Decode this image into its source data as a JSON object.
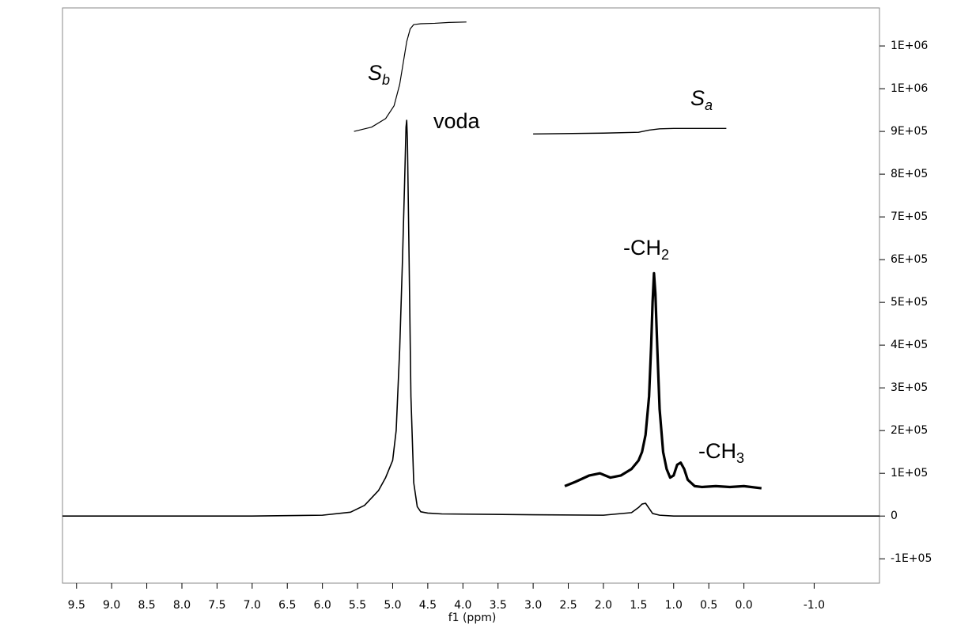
{
  "chart_data": {
    "type": "line",
    "x_label": "f1 (ppm)",
    "xlim": [
      9.7,
      -1.93
    ],
    "xticks": [
      9.5,
      {
        "value": 9,
        "label": "9.0"
      },
      8.5,
      {
        "value": 8,
        "label": "8.0"
      },
      7.5,
      {
        "value": 7,
        "label": "7.0"
      },
      6.5,
      {
        "value": 6,
        "label": "6.0"
      },
      5.5,
      {
        "value": 5,
        "label": "5.0"
      },
      4.5,
      {
        "value": 4,
        "label": "4.0"
      },
      3.5,
      {
        "value": 3,
        "label": "3.0"
      },
      2.5,
      {
        "value": 2,
        "label": "2.0"
      },
      1.5,
      {
        "value": 1,
        "label": "1.0"
      },
      0.5,
      {
        "value": 0,
        "label": "0.0"
      },
      {
        "value": -1,
        "label": "-1.0"
      }
    ],
    "ylim": [
      -157000,
      1189000
    ],
    "yticks": [
      {
        "value": 1100000,
        "label": "1E+06"
      },
      {
        "value": 1000000,
        "label": "1E+06"
      },
      {
        "value": 900000,
        "label": "9E+05"
      },
      {
        "value": 800000,
        "label": "8E+05"
      },
      {
        "value": 700000,
        "label": "7E+05"
      },
      {
        "value": 600000,
        "label": "6E+05"
      },
      {
        "value": 500000,
        "label": "5E+05"
      },
      {
        "value": 400000,
        "label": "4E+05"
      },
      {
        "value": 300000,
        "label": "3E+05"
      },
      {
        "value": 200000,
        "label": "2E+05"
      },
      {
        "value": 100000,
        "label": "1E+05"
      },
      0,
      {
        "value": -100000,
        "label": "-1E+05"
      }
    ],
    "series": [
      {
        "color": "#000000",
        "x": [
          9.7,
          7,
          6,
          5.6,
          5.4,
          5.2,
          5.1,
          5.0,
          4.95,
          4.9,
          4.86,
          4.83,
          4.81,
          4.8,
          4.79,
          4.77,
          4.74,
          4.7,
          4.65,
          4.6,
          4.5,
          4.3,
          3,
          2,
          1.6,
          1.5,
          1.45,
          1.4,
          1.35,
          1.3,
          1.2,
          1.0,
          0,
          -1.93
        ],
        "values": [
          0,
          0,
          2000,
          9000,
          25000,
          60000,
          90000,
          130000,
          200000,
          390000,
          600000,
          780000,
          910000,
          926000,
          880000,
          650000,
          280000,
          78000,
          22000,
          10000,
          7000,
          5000,
          3000,
          2000,
          8000,
          20000,
          28000,
          30000,
          18000,
          6000,
          2000,
          0,
          0,
          0
        ]
      },
      {
        "color": "#000000",
        "x": [
          2.55,
          2.4,
          2.2,
          2.05,
          1.9,
          1.75,
          1.6,
          1.5,
          1.45,
          1.4,
          1.35,
          1.32,
          1.3,
          1.28,
          1.26,
          1.23,
          1.2,
          1.15,
          1.1,
          1.05,
          1.0,
          0.95,
          0.9,
          0.85,
          0.8,
          0.7,
          0.6,
          0.4,
          0.2,
          0,
          -0.25
        ],
        "values": [
          70000,
          80000,
          95000,
          100000,
          90000,
          95000,
          110000,
          130000,
          150000,
          190000,
          280000,
          400000,
          500000,
          568000,
          520000,
          380000,
          250000,
          150000,
          110000,
          90000,
          95000,
          120000,
          125000,
          110000,
          85000,
          70000,
          68000,
          70000,
          68000,
          70000,
          65000
        ]
      },
      {
        "color": "#000000",
        "x": [
          5.55,
          5.3,
          5.1,
          4.98,
          4.9,
          4.85,
          4.8,
          4.75,
          4.7,
          4.6,
          4.4,
          4.2,
          3.95
        ],
        "values": [
          900000,
          910000,
          930000,
          960000,
          1010000,
          1060000,
          1110000,
          1140000,
          1150000,
          1152000,
          1153000,
          1155000,
          1156000
        ]
      },
      {
        "color": "#000000",
        "x": [
          3.0,
          2.0,
          1.5,
          1.35,
          1.2,
          1.0,
          0.25
        ],
        "values": [
          894000,
          896000,
          898000,
          903000,
          906000,
          907000,
          907000
        ]
      }
    ],
    "annotations": [
      {
        "text": "S",
        "sub": "b"
      },
      {
        "text": "voda"
      },
      {
        "text": "S",
        "sub": "a"
      },
      {
        "text": "-CH",
        "sub": "2"
      },
      {
        "text": "-CH",
        "sub": "3"
      }
    ]
  }
}
